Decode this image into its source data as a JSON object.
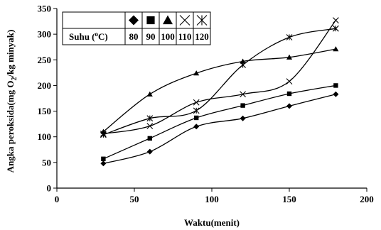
{
  "chart_data": {
    "type": "line",
    "xlabel": "Waktu(menit)",
    "ylabel_parts": [
      "Angka peroksida(mg O",
      "2",
      "/kg minyak)"
    ],
    "xlim": [
      0,
      200
    ],
    "ylim": [
      0,
      350
    ],
    "xticks": [
      0,
      50,
      100,
      150,
      200
    ],
    "yticks": [
      0,
      50,
      100,
      150,
      200,
      250,
      300,
      350
    ],
    "grid": false,
    "legend": {
      "placement": "top-left",
      "header_parts": [
        "Suhu (",
        "o",
        "C)"
      ],
      "entries": [
        "80",
        "90",
        "100",
        "110",
        "120"
      ]
    },
    "x": [
      30,
      60,
      90,
      120,
      150,
      180
    ],
    "series": [
      {
        "name": "80",
        "marker": "diamond",
        "values": [
          48,
          71,
          120,
          136,
          160,
          183
        ]
      },
      {
        "name": "90",
        "marker": "square",
        "values": [
          57,
          97,
          137,
          161,
          184,
          200
        ]
      },
      {
        "name": "100",
        "marker": "triangle",
        "values": [
          110,
          183,
          224,
          247,
          255,
          271
        ]
      },
      {
        "name": "110",
        "marker": "x",
        "values": [
          106,
          121,
          167,
          183,
          208,
          327
        ]
      },
      {
        "name": "120",
        "marker": "star",
        "values": [
          104,
          136,
          151,
          240,
          294,
          311
        ]
      }
    ]
  }
}
